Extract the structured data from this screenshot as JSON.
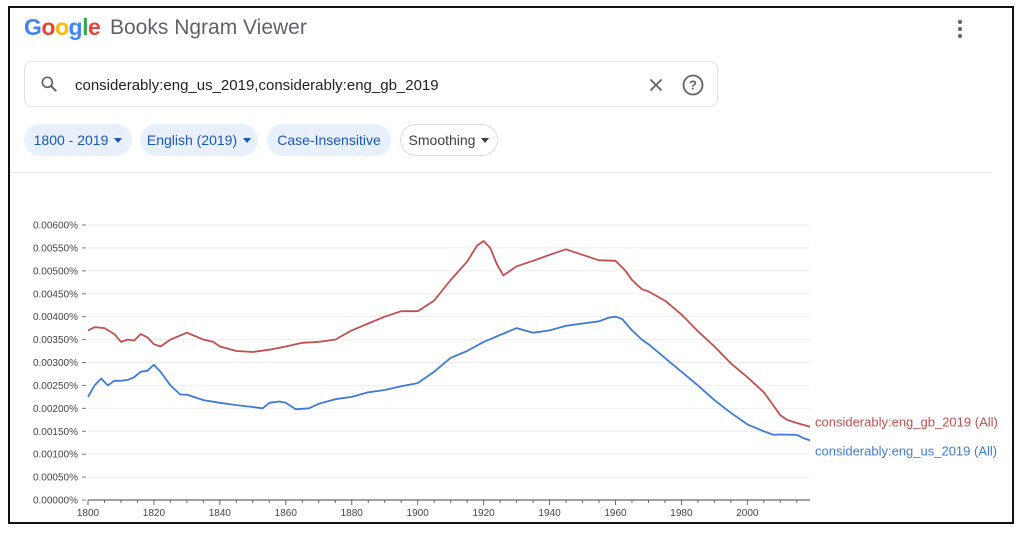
{
  "header": {
    "logo_letters": [
      {
        "ch": "G",
        "color": "#4285F4"
      },
      {
        "ch": "o",
        "color": "#EA4335"
      },
      {
        "ch": "o",
        "color": "#FBBC05"
      },
      {
        "ch": "g",
        "color": "#4285F4"
      },
      {
        "ch": "l",
        "color": "#34A853"
      },
      {
        "ch": "e",
        "color": "#EA4335"
      }
    ],
    "app_name": "Books Ngram Viewer",
    "menu_icon": "more-vert-icon"
  },
  "search": {
    "value": "considerably:eng_us_2019,considerably:eng_gb_2019",
    "icons": [
      "search-icon",
      "close-icon",
      "help-icon"
    ]
  },
  "filters": [
    {
      "label": "1800 - 2019",
      "style": "filled",
      "dropdown": true
    },
    {
      "label": "English (2019)",
      "style": "filled",
      "dropdown": true
    },
    {
      "label": "Case-Insensitive",
      "style": "filled",
      "dropdown": false
    },
    {
      "label": "Smoothing",
      "style": "outlined",
      "dropdown": true
    }
  ],
  "chart_data": {
    "type": "line",
    "xlim": [
      1800,
      2019
    ],
    "ylim": [
      0,
      0.006
    ],
    "x_ticks": [
      1800,
      1820,
      1840,
      1860,
      1880,
      1900,
      1920,
      1940,
      1960,
      1980,
      2000
    ],
    "y_ticks": [
      "0.00000%",
      "0.00050%",
      "0.00100%",
      "0.00150%",
      "0.00200%",
      "0.00250%",
      "0.00300%",
      "0.00350%",
      "0.00400%",
      "0.00450%",
      "0.00500%",
      "0.00550%",
      "0.00600%"
    ],
    "grid": "horizontal",
    "legend": "right end of lines",
    "series": [
      {
        "name": "considerably:eng_gb_2019 (All)",
        "color": "#c0504d",
        "x": [
          1800,
          1802,
          1805,
          1808,
          1810,
          1812,
          1814,
          1816,
          1818,
          1820,
          1822,
          1825,
          1830,
          1835,
          1838,
          1840,
          1845,
          1850,
          1855,
          1860,
          1865,
          1870,
          1875,
          1880,
          1885,
          1890,
          1895,
          1900,
          1905,
          1910,
          1915,
          1918,
          1920,
          1922,
          1924,
          1926,
          1930,
          1935,
          1940,
          1945,
          1950,
          1955,
          1960,
          1963,
          1965,
          1968,
          1970,
          1975,
          1980,
          1985,
          1990,
          1995,
          2000,
          2005,
          2008,
          2010,
          2012,
          2015,
          2019
        ],
        "y": [
          0.0037,
          0.00377,
          0.00375,
          0.00362,
          0.00345,
          0.0035,
          0.00348,
          0.00362,
          0.00355,
          0.0034,
          0.00335,
          0.0035,
          0.00365,
          0.0035,
          0.00345,
          0.00335,
          0.00325,
          0.00323,
          0.00328,
          0.00335,
          0.00343,
          0.00345,
          0.0035,
          0.0037,
          0.00385,
          0.004,
          0.00412,
          0.00412,
          0.00435,
          0.0048,
          0.0052,
          0.00555,
          0.00565,
          0.0055,
          0.00515,
          0.0049,
          0.0051,
          0.00522,
          0.00535,
          0.00547,
          0.00535,
          0.00523,
          0.00522,
          0.005,
          0.0048,
          0.0046,
          0.00455,
          0.00435,
          0.00405,
          0.00368,
          0.00335,
          0.00298,
          0.00268,
          0.00235,
          0.00205,
          0.00185,
          0.00175,
          0.00168,
          0.0016
        ]
      },
      {
        "name": "considerably:eng_us_2019 (All)",
        "color": "#3f7bd6",
        "x": [
          1800,
          1802,
          1804,
          1806,
          1808,
          1810,
          1812,
          1814,
          1816,
          1818,
          1820,
          1822,
          1825,
          1828,
          1830,
          1835,
          1840,
          1845,
          1850,
          1853,
          1855,
          1858,
          1860,
          1863,
          1867,
          1870,
          1875,
          1880,
          1885,
          1890,
          1895,
          1900,
          1905,
          1910,
          1915,
          1920,
          1925,
          1930,
          1935,
          1940,
          1945,
          1950,
          1955,
          1958,
          1960,
          1962,
          1965,
          1968,
          1970,
          1975,
          1980,
          1985,
          1990,
          1995,
          2000,
          2005,
          2008,
          2010,
          2015,
          2017,
          2019
        ],
        "y": [
          0.00225,
          0.0025,
          0.00265,
          0.0025,
          0.0026,
          0.0026,
          0.00262,
          0.00268,
          0.0028,
          0.00282,
          0.00295,
          0.0028,
          0.0025,
          0.0023,
          0.0023,
          0.00218,
          0.00212,
          0.00207,
          0.00203,
          0.002,
          0.00212,
          0.00215,
          0.00212,
          0.00198,
          0.002,
          0.0021,
          0.0022,
          0.00225,
          0.00235,
          0.0024,
          0.00248,
          0.00255,
          0.0028,
          0.0031,
          0.00325,
          0.00345,
          0.0036,
          0.00375,
          0.00365,
          0.0037,
          0.0038,
          0.00385,
          0.0039,
          0.00398,
          0.004,
          0.00395,
          0.0037,
          0.0035,
          0.0034,
          0.0031,
          0.0028,
          0.0025,
          0.00218,
          0.0019,
          0.00165,
          0.0015,
          0.00142,
          0.00143,
          0.00142,
          0.00135,
          0.0013
        ]
      }
    ]
  }
}
